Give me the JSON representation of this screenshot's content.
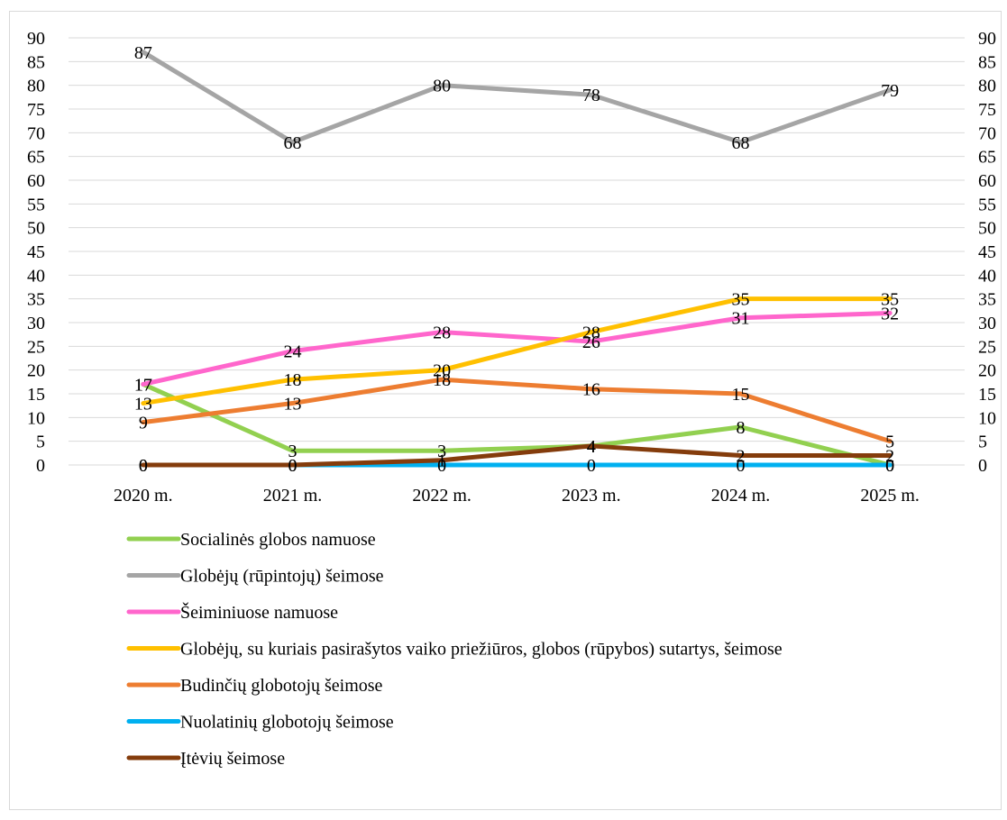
{
  "chart_data": {
    "type": "line",
    "title": "",
    "xlabel": "",
    "ylabel": "",
    "categories": [
      "2020 m.",
      "2021 m.",
      "2022 m.",
      "2023 m.",
      "2024 m.",
      "2025 m."
    ],
    "ylim": [
      0,
      90
    ],
    "y_ticks": [
      "0",
      "5",
      "10",
      "15",
      "20",
      "25",
      "30",
      "35",
      "40",
      "45",
      "50",
      "55",
      "60",
      "65",
      "70",
      "75",
      "80",
      "85",
      "90"
    ],
    "secondary_axis_ticks": [
      "0",
      "5",
      "10",
      "15",
      "20",
      "25",
      "30",
      "35",
      "40",
      "45",
      "50",
      "55",
      "60",
      "65",
      "70",
      "75",
      "80",
      "85",
      "90"
    ],
    "grid": true,
    "legend_position": "bottom",
    "series": [
      {
        "name": "Socialinės globos namuose",
        "color": "#92D050",
        "values": [
          17,
          3,
          3,
          4,
          8,
          0
        ]
      },
      {
        "name": "Globėjų (rūpintojų) šeimose",
        "color": "#A5A5A5",
        "values": [
          87,
          68,
          80,
          78,
          68,
          79
        ]
      },
      {
        "name": "Šeiminiuose namuose",
        "color": "#FF66CC",
        "values": [
          17,
          24,
          28,
          26,
          31,
          32
        ]
      },
      {
        "name": "Globėjų, su kuriais pasirašytos vaiko priežiūros, globos (rūpybos) sutartys, šeimose",
        "color": "#FFC000",
        "values": [
          13,
          18,
          20,
          28,
          35,
          35
        ]
      },
      {
        "name": "Budinčių globotojų šeimose",
        "color": "#ED7D31",
        "values": [
          9,
          13,
          18,
          16,
          15,
          5
        ]
      },
      {
        "name": "Nuolatinių globotojų šeimose",
        "color": "#00B0F0",
        "values": [
          0,
          0,
          0,
          0,
          0,
          0
        ]
      },
      {
        "name": "Įtėvių šeimose",
        "color": "#843C0C",
        "values": [
          0,
          0,
          1,
          4,
          2,
          2
        ]
      }
    ],
    "data_labels": [
      [
        "17",
        "3",
        "3",
        "4",
        "8",
        "0"
      ],
      [
        "87",
        "68",
        "80",
        "78",
        "68",
        "79"
      ],
      [
        "17",
        "24",
        "28",
        "26",
        "31",
        "32"
      ],
      [
        "13",
        "18",
        "20",
        "28",
        "35",
        "35"
      ],
      [
        "9",
        "13",
        "18",
        "16",
        "15",
        "5"
      ],
      [
        "0",
        "0",
        "0",
        "0",
        "0",
        "0"
      ],
      [
        "0",
        "0",
        "1",
        "4",
        "2",
        "2"
      ]
    ]
  }
}
